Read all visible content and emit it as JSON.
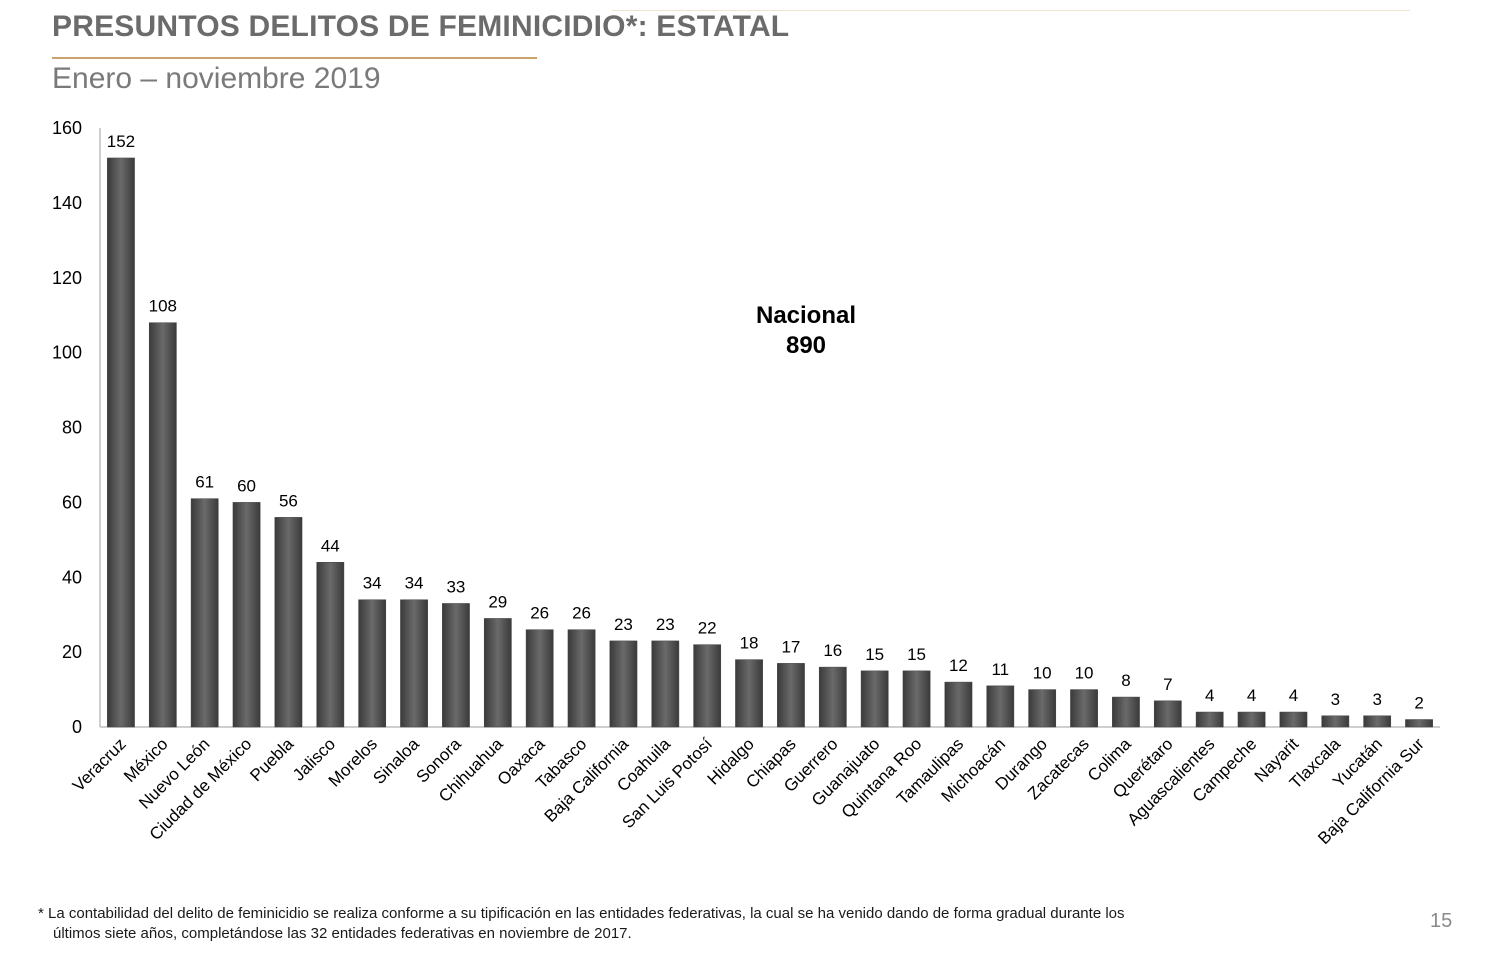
{
  "header": {
    "title": "PRESUNTOS DELITOS DE FEMINICIDIO*: ESTATAL",
    "subtitle": "Enero – noviembre 2019"
  },
  "chart_data": {
    "type": "bar",
    "title": "PRESUNTOS DELITOS DE FEMINICIDIO*: ESTATAL",
    "subtitle": "Enero – noviembre 2019",
    "categories": [
      "Veracruz",
      "México",
      "Nuevo León",
      "Ciudad de México",
      "Puebla",
      "Jalisco",
      "Morelos",
      "Sinaloa",
      "Sonora",
      "Chihuahua",
      "Oaxaca",
      "Tabasco",
      "Baja California",
      "Coahuila",
      "San Luis Potosí",
      "Hidalgo",
      "Chiapas",
      "Guerrero",
      "Guanajuato",
      "Quintana Roo",
      "Tamaulipas",
      "Michoacán",
      "Durango",
      "Zacatecas",
      "Colima",
      "Querétaro",
      "Aguascalientes",
      "Campeche",
      "Nayarit",
      "Tlaxcala",
      "Yucatán",
      "Baja California Sur"
    ],
    "values": [
      152,
      108,
      61,
      60,
      56,
      44,
      34,
      34,
      33,
      29,
      26,
      26,
      23,
      23,
      22,
      18,
      17,
      16,
      15,
      15,
      12,
      11,
      10,
      10,
      8,
      7,
      4,
      4,
      4,
      3,
      3,
      2
    ],
    "ylim": [
      0,
      160
    ],
    "yticks": [
      0,
      20,
      40,
      60,
      80,
      100,
      120,
      140,
      160
    ],
    "xlabel": "",
    "ylabel": "",
    "grid": false,
    "bar_color": "#555555",
    "annotation": {
      "line1": "Nacional",
      "line2": "890"
    }
  },
  "footnote": {
    "line1": "* La contabilidad del delito de feminicidio se realiza conforme a su tipificación en las entidades federativas, la cual se ha venido dando de forma gradual durante los",
    "line2": "últimos siete años, completándose las 32 entidades federativas en noviembre de 2017."
  },
  "page_number": "15"
}
